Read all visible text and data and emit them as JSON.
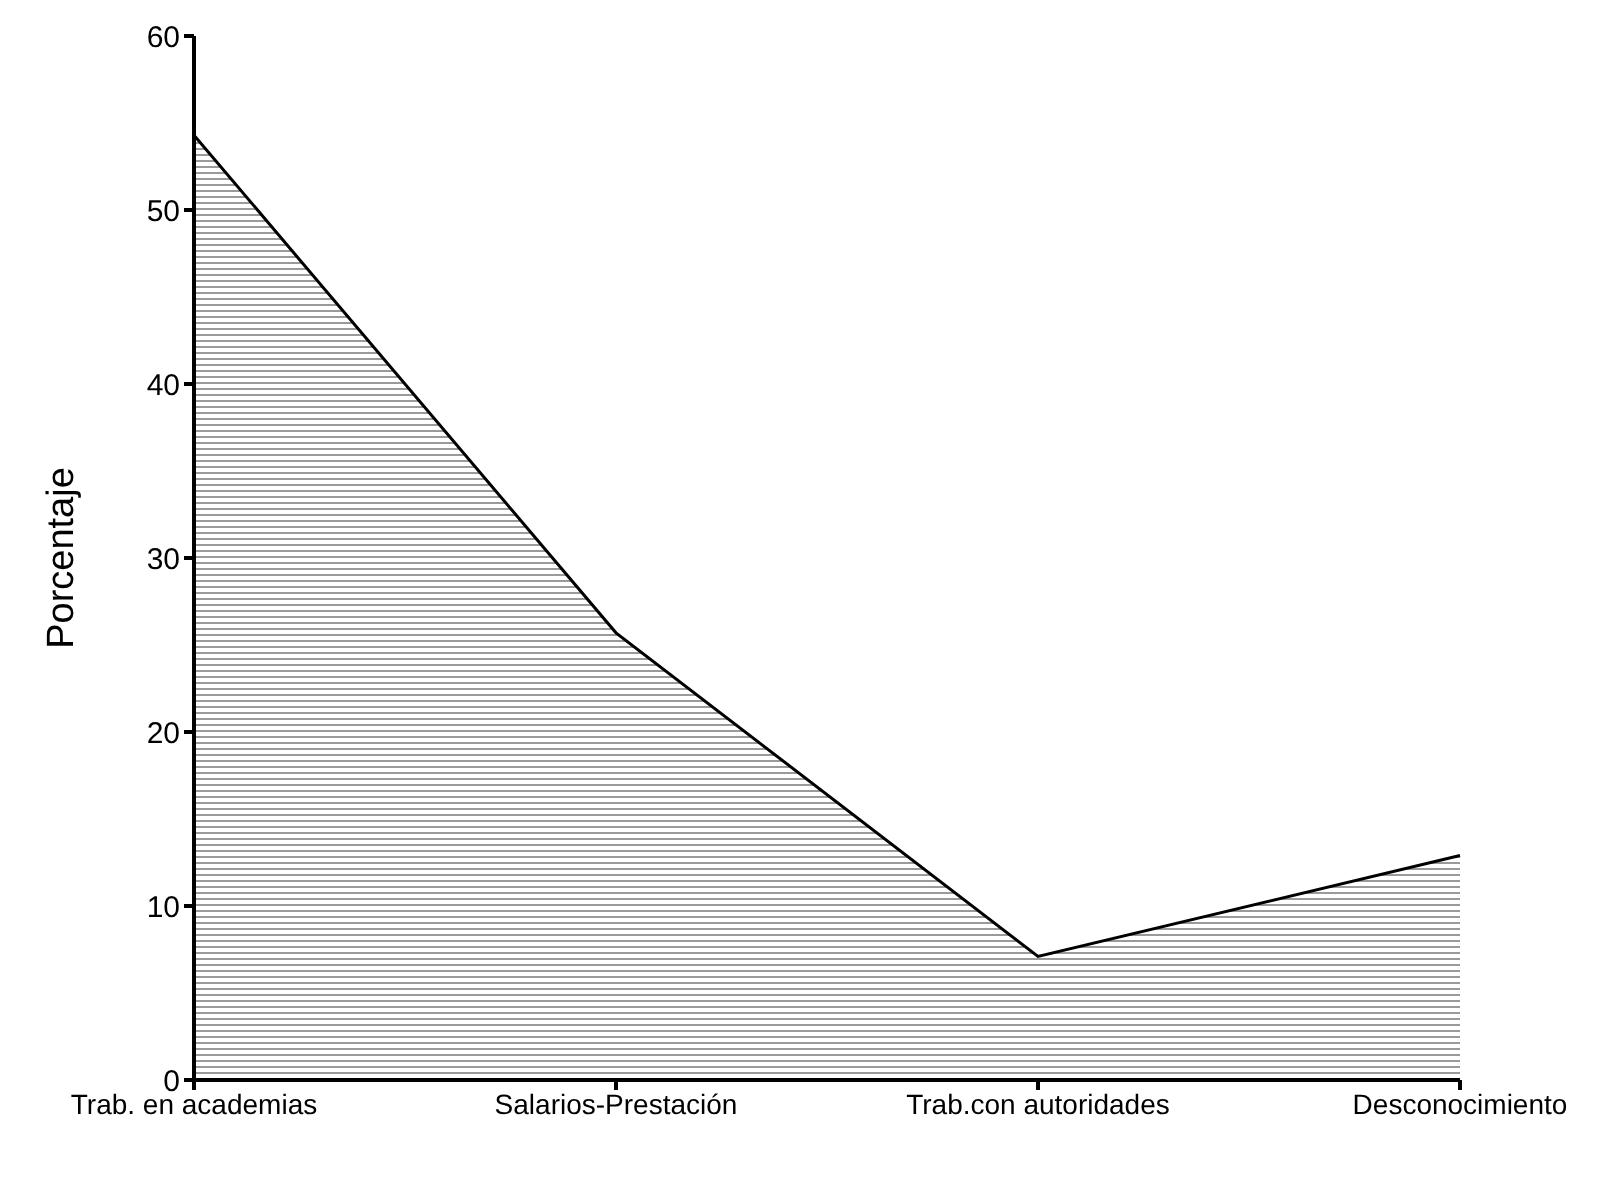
{
  "chart_data": {
    "type": "area",
    "ylabel": "Porcentaje",
    "categories": [
      "Trab. en academias",
      "Salarios-Prestación",
      "Trab.con autoridades",
      "Desconocimiento"
    ],
    "values": [
      54.3,
      25.7,
      7.1,
      12.9
    ],
    "color": "#000000",
    "ylim": [
      0,
      60
    ],
    "yticks": [
      0,
      10,
      20,
      30,
      40,
      50,
      60
    ],
    "grid": false
  }
}
